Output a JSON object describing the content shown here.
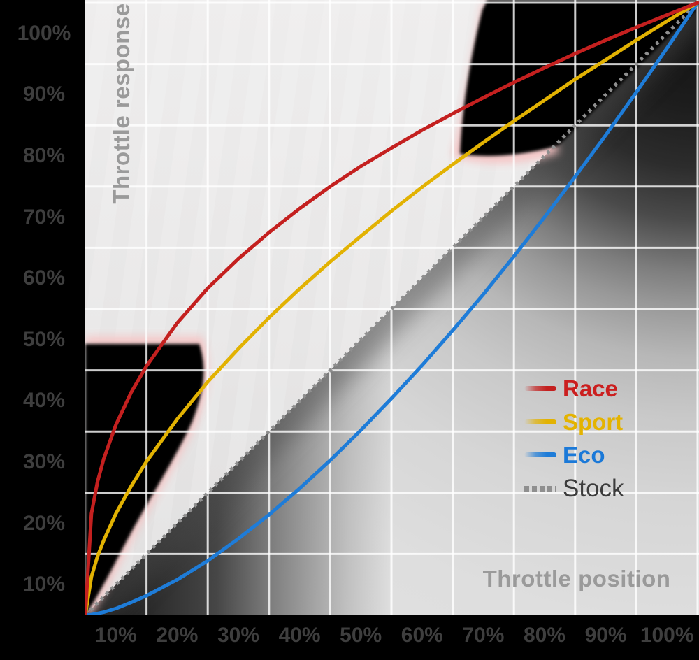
{
  "page": {
    "background": "#000000"
  },
  "chart_data": {
    "type": "line",
    "title": "",
    "xlabel": "Throttle position",
    "ylabel": "Throttle response",
    "xlim": [
      0,
      100
    ],
    "ylim": [
      0,
      100
    ],
    "grid": true,
    "legend_position": "right-center",
    "x_tick_labels": [
      "10%",
      "20%",
      "30%",
      "40%",
      "50%",
      "60%",
      "70%",
      "80%",
      "90%",
      "100%"
    ],
    "y_tick_labels": [
      "100%",
      "90%",
      "80%",
      "70%",
      "60%",
      "50%",
      "40%",
      "30%",
      "20%",
      "10%"
    ],
    "x": [
      0,
      1,
      2,
      3,
      5,
      7.5,
      10,
      15,
      20,
      25,
      30,
      35,
      40,
      45,
      50,
      55,
      60,
      65,
      70,
      75,
      80,
      85,
      90,
      95,
      100
    ],
    "series": [
      {
        "name": "Race",
        "style": "solid",
        "color": "#c4201f",
        "legend_text_color": "#cb1f1f",
        "values": [
          0,
          16.6,
          21.8,
          25.5,
          31.1,
          36.4,
          40.7,
          47.7,
          53.4,
          58.2,
          62.5,
          66.4,
          70,
          73.3,
          76.3,
          79.2,
          81.9,
          84.5,
          87,
          89.4,
          91.7,
          93.9,
          96,
          98,
          100
        ]
      },
      {
        "name": "Sport",
        "style": "solid",
        "color": "#e2b202",
        "legend_text_color": "#e4b300",
        "values": [
          0,
          6.3,
          9.6,
          12.2,
          16.6,
          21.1,
          25.1,
          32,
          38.1,
          43.5,
          48.6,
          53.3,
          57.7,
          61.9,
          66,
          69.9,
          73.6,
          77.2,
          80.7,
          84.1,
          87.5,
          90.7,
          93.9,
          97,
          100
        ]
      },
      {
        "name": "Eco",
        "style": "solid",
        "color": "#1e7cd8",
        "legend_text_color": "#1b79d8",
        "values": [
          0,
          0.1,
          0.3,
          0.5,
          1.1,
          2.1,
          3.2,
          5.8,
          8.9,
          12.5,
          16.4,
          20.7,
          25.3,
          30.2,
          35.4,
          40.8,
          46.5,
          52.4,
          58.6,
          65,
          71.6,
          78.4,
          85.4,
          92.6,
          100
        ]
      },
      {
        "name": "Stock",
        "style": "dotted",
        "color": "#8f8f8f",
        "legend_text_color": "#3c3c3c",
        "values": [
          0,
          1,
          2,
          3,
          5,
          7.5,
          10,
          15,
          20,
          25,
          30,
          35,
          40,
          45,
          50,
          55,
          60,
          65,
          70,
          75,
          80,
          85,
          90,
          95,
          100
        ]
      }
    ],
    "axis_title_color": "#9a9a9a",
    "tick_label_color": "#3e3e3e",
    "grid_color": "rgba(255,255,255,0.8)",
    "fringe_color": "#f6c3c3"
  }
}
